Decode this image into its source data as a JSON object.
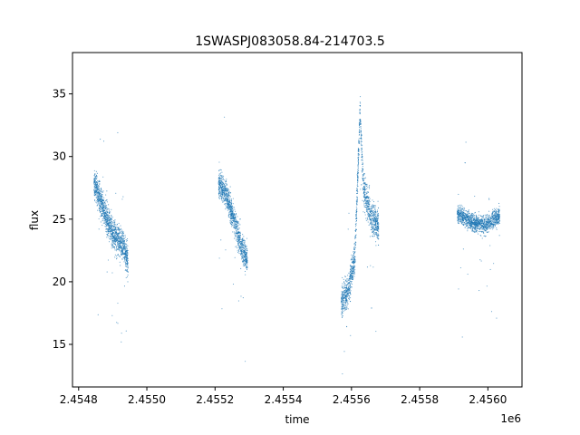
{
  "chart_data": {
    "type": "scatter",
    "title": "1SWASPJ083058.84-214703.5",
    "xlabel": "time",
    "ylabel": "flux",
    "x_offset_label": "1e6",
    "xlim": [
      2454782,
      2456100
    ],
    "ylim": [
      11.6,
      38.3
    ],
    "x_ticks": [
      2454800,
      2455000,
      2455200,
      2455400,
      2455600,
      2455800,
      2456000
    ],
    "x_tick_labels": [
      "2.4548",
      "2.4550",
      "2.4552",
      "2.4554",
      "2.4556",
      "2.4558",
      "2.4560"
    ],
    "y_ticks": [
      15,
      20,
      25,
      30,
      35
    ],
    "y_tick_labels": [
      "15",
      "20",
      "25",
      "30",
      "35"
    ],
    "grid": false,
    "point_color": "#1f77b4",
    "segments": [
      {
        "x_range": [
          2454845,
          2454945
        ],
        "trend": [
          [
            2454845,
            28.0
          ],
          [
            2454870,
            26.0
          ],
          [
            2454900,
            23.8
          ],
          [
            2454930,
            23.0
          ],
          [
            2454945,
            21.5
          ]
        ],
        "scatter": 1.2,
        "n": 1400
      },
      {
        "x_range": [
          2455210,
          2455295
        ],
        "trend": [
          [
            2455210,
            28.0
          ],
          [
            2455235,
            26.8
          ],
          [
            2455260,
            24.5
          ],
          [
            2455280,
            22.5
          ],
          [
            2455295,
            21.8
          ]
        ],
        "scatter": 1.1,
        "n": 1100
      },
      {
        "x_range": [
          2455570,
          2455680
        ],
        "trend": [
          [
            2455570,
            18.5
          ],
          [
            2455590,
            19.2
          ],
          [
            2455610,
            22.0
          ],
          [
            2455625,
            33.5
          ],
          [
            2455635,
            27.5
          ],
          [
            2455660,
            25.0
          ],
          [
            2455680,
            24.5
          ]
        ],
        "scatter": 1.3,
        "n": 1400
      },
      {
        "x_range": [
          2455910,
          2456035
        ],
        "trend": [
          [
            2455910,
            25.5
          ],
          [
            2455950,
            24.8
          ],
          [
            2455990,
            24.5
          ],
          [
            2456035,
            25.3
          ]
        ],
        "scatter": 0.7,
        "n": 1300
      }
    ]
  }
}
